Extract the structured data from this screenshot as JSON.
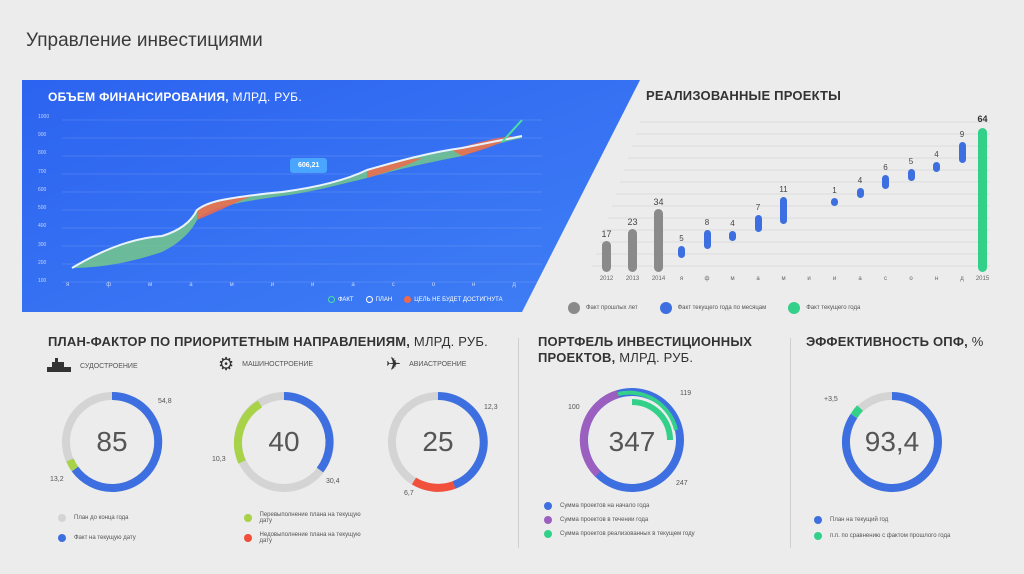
{
  "page_title": "Управление инвестициями",
  "financing": {
    "title": "ОБЪЕМ ФИНАНСИРОВАНИЯ,",
    "unit": " МЛРД. РУБ.",
    "y_ticks": [
      "100",
      "200",
      "300",
      "400",
      "500",
      "600",
      "700",
      "800",
      "900",
      "1000"
    ],
    "x_ticks": [
      "я",
      "ф",
      "м",
      "а",
      "м",
      "и",
      "и",
      "а",
      "с",
      "о",
      "н",
      "д"
    ],
    "callout": "606,21",
    "legend": [
      "ФАКТ",
      "ПЛАН",
      "ЦЕЛЬ НЕ БУДЕТ ДОСТИГНУТА"
    ]
  },
  "projects": {
    "title": "РЕАЛИЗОВАННЫЕ ПРОЕКТЫ",
    "past_years": [
      {
        "label": "2012",
        "value": "17"
      },
      {
        "label": "2013",
        "value": "23"
      },
      {
        "label": "2014",
        "value": "34"
      }
    ],
    "months": [
      {
        "label": "я",
        "value": "5"
      },
      {
        "label": "ф",
        "value": "8"
      },
      {
        "label": "м",
        "value": "4"
      },
      {
        "label": "а",
        "value": "7"
      },
      {
        "label": "м",
        "value": "11"
      },
      {
        "label": "и",
        "value": ""
      },
      {
        "label": "и",
        "value": "1"
      },
      {
        "label": "а",
        "value": "4"
      },
      {
        "label": "с",
        "value": "6"
      },
      {
        "label": "о",
        "value": "5"
      },
      {
        "label": "н",
        "value": "4"
      },
      {
        "label": "д",
        "value": "9"
      }
    ],
    "total": {
      "label": "2015",
      "value": "64"
    },
    "legend": [
      "Факт прошлых лет",
      "Факт текущего года по месяцам",
      "Факт текущего года"
    ]
  },
  "planfact": {
    "title": "ПЛАН-ФАКТОР ПО ПРИОРИТЕТНЫМ НАПРАВЛЕНИЯМ,",
    "unit": " МЛРД. РУБ.",
    "rings": [
      {
        "name": "СУДОСТРОЕНИЕ",
        "value": "85",
        "top_right": "54,8",
        "bottom_left": "13,2"
      },
      {
        "name": "МАШИНОСТРОЕНИЕ",
        "value": "40",
        "left": "10,3",
        "bottom_right": "30,4"
      },
      {
        "name": "АВИАСТРОЕНИЕ",
        "value": "25",
        "top_right": "12,3",
        "bottom_left": "6,7"
      }
    ],
    "legend": [
      "План до конца года",
      "Факт на текущую дату",
      "Перевыполнение плана на текущую дату",
      "Недовыполнение плана на текущую дату"
    ]
  },
  "portfolio": {
    "title": "ПОРТФЕЛЬ ИНВЕСТИЦИОННЫХ",
    "title2": "ПРОЕКТОВ,",
    "unit": " МЛРД. РУБ.",
    "value": "347",
    "left": "100",
    "top_right": "119",
    "bottom_right": "247",
    "legend": [
      "Сумма проектов на начало года",
      "Сумма проектов в течении года",
      "Сумма проектов реализованных в текущем году"
    ]
  },
  "efficiency": {
    "title": "ЭФФЕКТИВНОСТЬ ОПФ,",
    "unit": " %",
    "value": "93,4",
    "delta": "+3,5",
    "legend": [
      "План на текущий год",
      "п.п. по сравнению с фактом прошлого года"
    ]
  },
  "colors": {
    "blue": "#3d6fe0",
    "gray": "#d4d4d4",
    "green": "#33d08a",
    "purple": "#9b5fc0",
    "red": "#f0503c",
    "lime": "#a8d248"
  }
}
